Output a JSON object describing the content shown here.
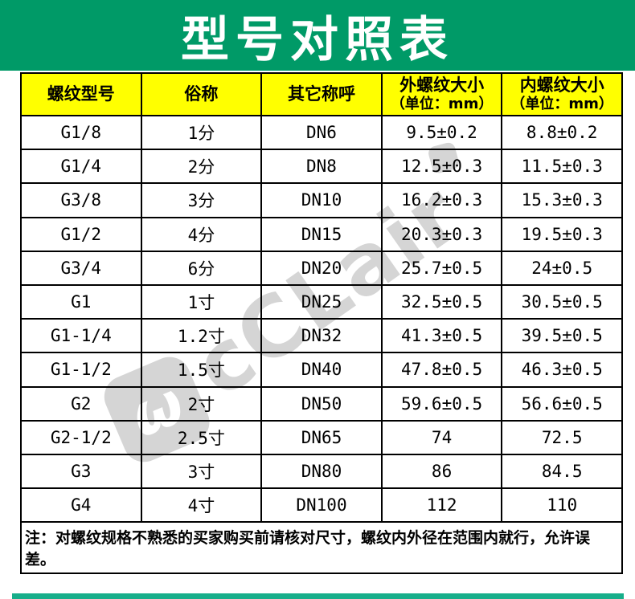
{
  "title": "型号对照表",
  "watermark": {
    "logo_glyph": "ω",
    "text": "cCLair"
  },
  "colors": {
    "banner_green": "#009A67",
    "header_yellow": "#FFFF00",
    "bottom_bar_teal": "#17AE8A",
    "watermark_gray": "#D5D5D5",
    "border_black": "#000000"
  },
  "table": {
    "headers": [
      {
        "line1": "螺纹型号",
        "line2": ""
      },
      {
        "line1": "俗称",
        "line2": ""
      },
      {
        "line1": "其它称呼",
        "line2": ""
      },
      {
        "line1": "外螺纹大小",
        "line2": "（单位：mm）"
      },
      {
        "line1": "内螺纹大小",
        "line2": "（单位：mm）"
      }
    ],
    "rows": [
      [
        "G1/8",
        "1分",
        "DN6",
        "9.5±0.2",
        "8.8±0.2"
      ],
      [
        "G1/4",
        "2分",
        "DN8",
        "12.5±0.3",
        "11.5±0.3"
      ],
      [
        "G3/8",
        "3分",
        "DN10",
        "16.2±0.3",
        "15.3±0.3"
      ],
      [
        "G1/2",
        "4分",
        "DN15",
        "20.3±0.3",
        "19.5±0.3"
      ],
      [
        "G3/4",
        "6分",
        "DN20",
        "25.7±0.5",
        "24±0.5"
      ],
      [
        "G1",
        "1寸",
        "DN25",
        "32.5±0.5",
        "30.5±0.5"
      ],
      [
        "G1-1/4",
        "1.2寸",
        "DN32",
        "41.3±0.5",
        "39.5±0.5"
      ],
      [
        "G1-1/2",
        "1.5寸",
        "DN40",
        "47.8±0.5",
        "46.3±0.5"
      ],
      [
        "G2",
        "2寸",
        "DN50",
        "59.6±0.5",
        "56.6±0.5"
      ],
      [
        "G2-1/2",
        "2.5寸",
        "DN65",
        "74",
        "72.5"
      ],
      [
        "G3",
        "3寸",
        "DN80",
        "86",
        "84.5"
      ],
      [
        "G4",
        "4寸",
        "DN100",
        "112",
        "110"
      ]
    ],
    "note": "注：对螺纹规格不熟悉的买家购买前请核对尺寸，螺纹内外径在范围内就行，允许误差。"
  }
}
